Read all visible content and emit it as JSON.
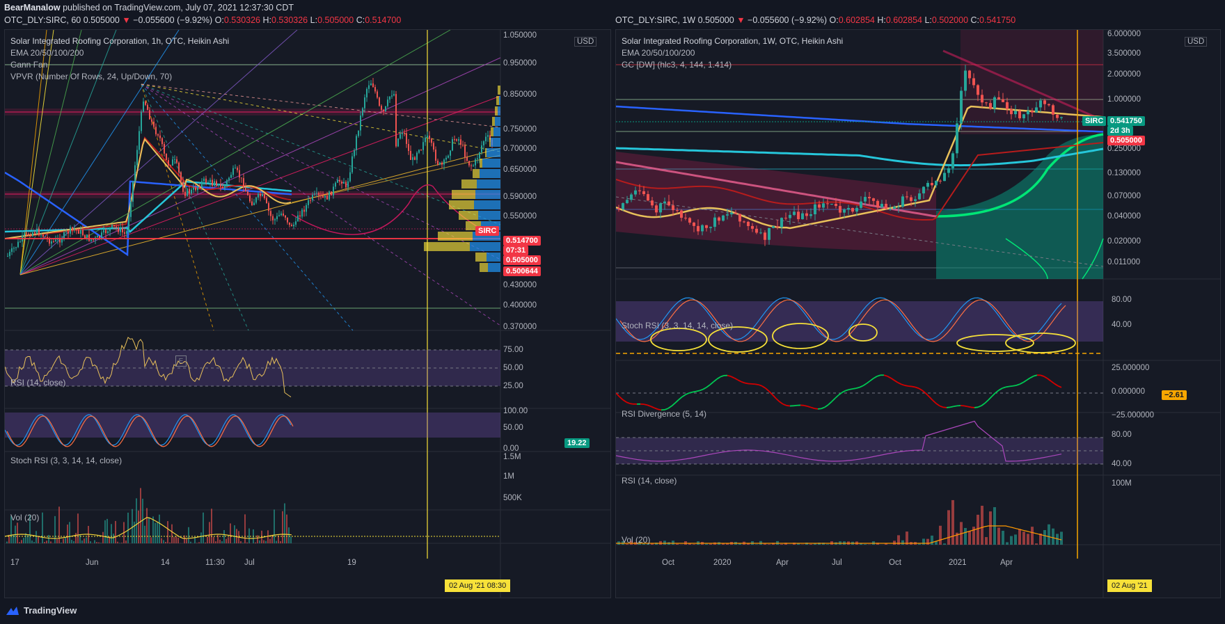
{
  "header": {
    "author": "BearManalow",
    "published_text": "published on TradingView.com, July 07, 2021 12:37:30 CDT"
  },
  "left_chart": {
    "ohlc": {
      "symbol": "OTC_DLY:SIRC, 60",
      "last": "0.505000",
      "arrow": "▼",
      "change": "−0.055600 (−9.92%)",
      "o_label": "O:",
      "o": "0.530326",
      "h_label": "H:",
      "h": "0.530326",
      "l_label": "L:",
      "l": "0.505000",
      "c_label": "C:",
      "c": "0.514700"
    },
    "legend": [
      "Solar Integrated Roofing Corporation, 1h, OTC, Heikin Ashi",
      "EMA 20/50/100/200",
      "Gann Fan",
      "VPVR (Number Of Rows, 24, Up/Down, 70)"
    ],
    "currency": "USD",
    "price_axis": [
      "1.050000",
      "0.950000",
      "0.850000",
      "0.750000",
      "0.700000",
      "0.650000",
      "0.590000",
      "0.550000",
      "0.430000",
      "0.400000",
      "0.370000"
    ],
    "price_tags": [
      {
        "label": "SIRC",
        "color": "#f23645"
      },
      {
        "label": "0.514700",
        "color": "#f23645"
      },
      {
        "label": "07:31",
        "color": "#f23645"
      },
      {
        "label": "0.505000",
        "color": "#f23645"
      },
      {
        "label": "0.500644",
        "color": "#f23645"
      }
    ],
    "rsi_title": "RSI (14, close)",
    "rsi_axis": [
      "75.00",
      "50.00",
      "25.00"
    ],
    "rsi_value": "19.22",
    "stoch_title": "Stoch RSI (3, 3, 14, 14, close)",
    "stoch_axis": [
      "100.00",
      "50.00",
      "0.00"
    ],
    "vol_title": "Vol (20)",
    "vol_axis": [
      "1.5M",
      "1M",
      "500K"
    ],
    "x_labels": [
      "17",
      "Jun",
      "14",
      "11:30",
      "Jul",
      "19"
    ],
    "date_tag": "02 Aug '21   08:30",
    "e_marker": "E"
  },
  "right_chart": {
    "ohlc": {
      "symbol": "OTC_DLY:SIRC, 1W",
      "last": "0.505000",
      "arrow": "▼",
      "change": "−0.055600 (−9.92%)",
      "o_label": "O:",
      "o": "0.602854",
      "h_label": "H:",
      "h": "0.602854",
      "l_label": "L:",
      "l": "0.502000",
      "c_label": "C:",
      "c": "0.541750"
    },
    "legend": [
      "Solar Integrated Roofing Corporation, 1W, OTC, Heikin Ashi",
      "EMA 20/50/100/200",
      "GC [DW] (hlc3, 4, 144, 1.414)"
    ],
    "currency": "USD",
    "price_axis": [
      "6.000000",
      "3.500000",
      "2.000000",
      "1.000000",
      "0.250000",
      "0.130000",
      "0.070000",
      "0.040000",
      "0.020000",
      "0.011000"
    ],
    "price_tags": [
      {
        "label": "SIRC",
        "color": "#089981"
      },
      {
        "label": "0.541750",
        "color": "#089981"
      },
      {
        "label": "2d 3h",
        "color": "#089981"
      },
      {
        "label": "0.505000",
        "color": "#f23645"
      }
    ],
    "stoch_title": "Stoch RSI (3, 3, 14, 14, close)",
    "stoch_axis": [
      "80.00",
      "40.00"
    ],
    "stoch_value": "−2.61",
    "div_title": "RSI Divergence (5, 14)",
    "div_axis": [
      "25.000000",
      "0.000000",
      "−25.000000"
    ],
    "rsi_title": "RSI (14, close)",
    "rsi_axis": [
      "80.00",
      "40.00"
    ],
    "vol_title": "Vol (20)",
    "vol_axis": [
      "100M"
    ],
    "x_labels": [
      "Oct",
      "2020",
      "Apr",
      "Jul",
      "Oct",
      "2021",
      "Apr"
    ],
    "date_tag": "02 Aug '21"
  },
  "footer": {
    "brand": "TradingView"
  },
  "colors": {
    "bg": "#131722",
    "up": "#26a69a",
    "down": "#ef5350",
    "ema20": "#e8c05a",
    "ema50": "#b71c1c",
    "ema100": "#26c6da",
    "ema200": "#2962ff",
    "rsi": "#e8c05a",
    "stoch_k": "#2196f3",
    "stoch_d": "#ff7043",
    "vol_ma": "#f2d23a"
  },
  "chart_data": [
    {
      "type": "candlestick",
      "title": "Solar Integrated Roofing Corporation, 1h, OTC, Heikin Ashi",
      "x_labels": [
        "17",
        "Jun",
        "14",
        "11:30",
        "Jul",
        "19"
      ],
      "y_range": [
        0.35,
        1.05
      ],
      "last_close": 0.5147,
      "horizontal_levels": [
        0.95,
        0.78,
        0.59,
        0.52,
        0.505,
        0.38
      ],
      "vertical_marker": "02 Aug '21 08:30",
      "ema_periods": [
        20,
        50,
        100,
        200
      ]
    },
    {
      "type": "candlestick",
      "title": "Solar Integrated Roofing Corporation, 1W, OTC, Heikin Ashi",
      "x_labels": [
        "Oct",
        "2020",
        "Apr",
        "Jul",
        "Oct",
        "2021",
        "Apr"
      ],
      "y_scale": "log",
      "y_range": [
        0.008,
        6.0
      ],
      "last_close": 0.54175,
      "vertical_marker": "02 Aug '21",
      "ema_periods": [
        20,
        50,
        100,
        200
      ]
    }
  ]
}
